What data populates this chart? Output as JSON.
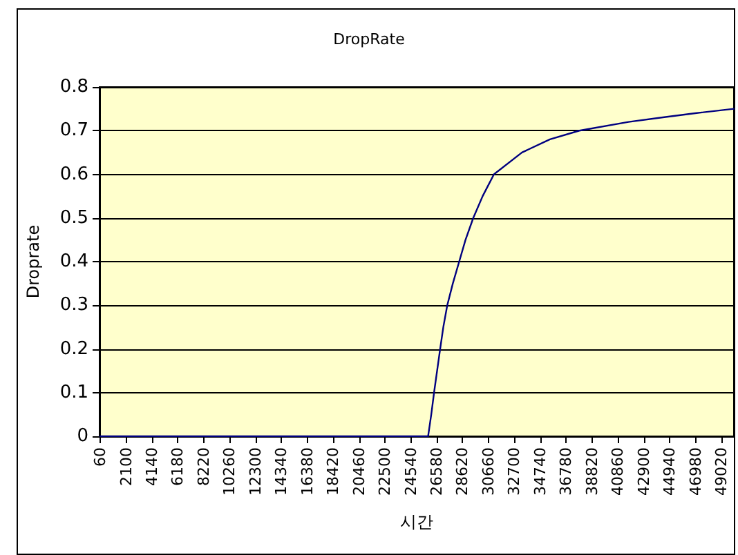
{
  "chart_data": {
    "type": "line",
    "title": "DropRate",
    "xlabel": "시간",
    "ylabel": "Droprate",
    "x": [
      60,
      10000,
      20000,
      25900,
      26150,
      26370,
      26850,
      27100,
      27410,
      27850,
      28350,
      28850,
      29460,
      30200,
      31090,
      33300,
      35500,
      37820,
      41700,
      44300,
      46960,
      50000
    ],
    "series": [
      {
        "color": "#000080",
        "values": [
          0,
          0,
          0,
          0,
          0.05,
          0.1,
          0.2,
          0.25,
          0.3,
          0.35,
          0.4,
          0.45,
          0.5,
          0.55,
          0.6,
          0.65,
          0.68,
          0.7,
          0.72,
          0.73,
          0.74,
          0.75
        ]
      }
    ],
    "xlim": [
      0,
      50000
    ],
    "xticks": [
      60,
      2100,
      4140,
      6180,
      8220,
      10260,
      12300,
      14340,
      16380,
      18420,
      20460,
      22500,
      24540,
      26580,
      28620,
      30660,
      32700,
      34740,
      36780,
      38820,
      40860,
      42900,
      44940,
      46980,
      49020
    ],
    "ylim": [
      0,
      0.8
    ],
    "yticks": [
      0,
      0.1,
      0.2,
      0.3,
      0.4,
      0.5,
      0.6,
      0.7,
      0.8
    ],
    "grid": "y",
    "marker": "none",
    "line_style": "solid"
  }
}
